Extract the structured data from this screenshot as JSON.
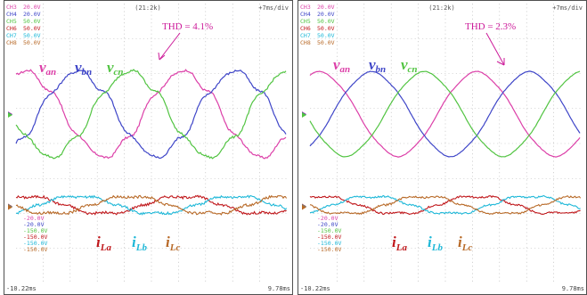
{
  "colors": {
    "van": "#dc3fa8",
    "vbn": "#3f46c8",
    "vcn": "#52c442",
    "iLa": "#c0181c",
    "iLb": "#1fb8d8",
    "iLc": "#b86a28",
    "grid": "#b8b8b8",
    "frame": "#505050",
    "annotation": "#cc1a99"
  },
  "panels": [
    {
      "header_center": "(21:2k)",
      "header_right": "+7ms/div",
      "channel_tags": [
        "CH3",
        "CH4",
        "CH5",
        "CH6",
        "CH7",
        "CH8"
      ],
      "channel_values": [
        "20.0V",
        "20.0V",
        "50.0V",
        "50.0V",
        "50.0V",
        "50.0V"
      ],
      "scale_labels": [
        "-20.0V",
        "-20.0V",
        "-150.0V",
        "-150.0V",
        "-150.0V",
        "-150.0V"
      ],
      "time_start": "-10.22ms",
      "time_end": "9.78ms",
      "thd_label": "THD = 4.1%",
      "labels": {
        "van": "v",
        "van_sub": "an",
        "vbn": "v",
        "vbn_sub": "bn",
        "vcn": "v",
        "vcn_sub": "cn",
        "iLa": "i",
        "iLa_sub": "La",
        "iLb": "i",
        "iLb_sub": "Lb",
        "iLc": "i",
        "iLc_sub": "Lc"
      }
    },
    {
      "header_center": "(21:2k)",
      "header_right": "+7ms/div",
      "channel_tags": [
        "CH3",
        "CH4",
        "CH5",
        "CH6",
        "CH7",
        "CH8"
      ],
      "channel_values": [
        "20.0V",
        "20.0V",
        "50.0V",
        "50.0V",
        "50.0V",
        "50.0V"
      ],
      "scale_labels": [
        "-20.0V",
        "-20.0V",
        "-150.0V",
        "-150.0V",
        "-150.0V",
        "-150.0V"
      ],
      "time_start": "-10.22ms",
      "time_end": "9.78ms",
      "thd_label": "THD = 2.3%",
      "labels": {
        "van": "v",
        "van_sub": "an",
        "vbn": "v",
        "vbn_sub": "bn",
        "vcn": "v",
        "vcn_sub": "cn",
        "iLa": "i",
        "iLa_sub": "La",
        "iLb": "i",
        "iLb_sub": "Lb",
        "iLc": "i",
        "iLc_sub": "Lc"
      }
    }
  ],
  "chart_data": [
    {
      "type": "line",
      "x_label": "",
      "time_range_ms": [
        -10.22,
        9.78
      ],
      "voltage_series": [
        {
          "name": "v_an",
          "phase_deg": 0,
          "harmonic_distortion": "high"
        },
        {
          "name": "v_bn",
          "phase_deg": -120,
          "harmonic_distortion": "high"
        },
        {
          "name": "v_cn",
          "phase_deg": 120,
          "harmonic_distortion": "high"
        }
      ],
      "current_series": [
        {
          "name": "i_La"
        },
        {
          "name": "i_Lb"
        },
        {
          "name": "i_Lc"
        }
      ],
      "thd_percent": 4.1
    },
    {
      "type": "line",
      "x_label": "",
      "time_range_ms": [
        -10.22,
        9.78
      ],
      "voltage_series": [
        {
          "name": "v_an",
          "phase_deg": 0,
          "harmonic_distortion": "low"
        },
        {
          "name": "v_bn",
          "phase_deg": -120,
          "harmonic_distortion": "low"
        },
        {
          "name": "v_cn",
          "phase_deg": 120,
          "harmonic_distortion": "low"
        }
      ],
      "current_series": [
        {
          "name": "i_La"
        },
        {
          "name": "i_Lb"
        },
        {
          "name": "i_Lc"
        }
      ],
      "thd_percent": 2.3
    }
  ]
}
